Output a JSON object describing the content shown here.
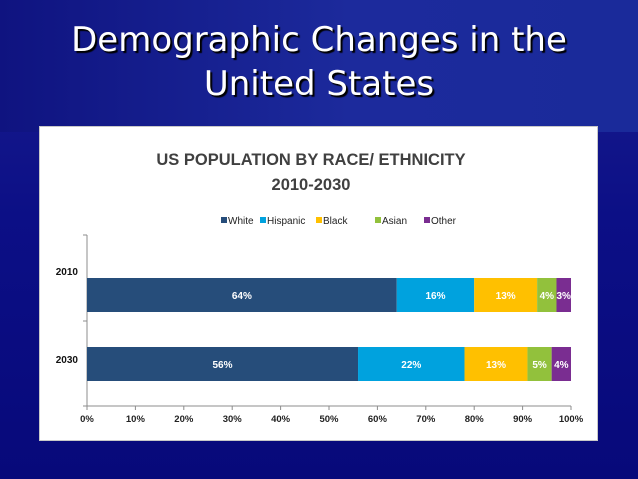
{
  "slide": {
    "title_line1": "Demographic Changes in the",
    "title_line2": "United States"
  },
  "colors": {
    "White": "#264d7a",
    "Hispanic": "#00a2de",
    "Black": "#ffc000",
    "Asian": "#92c13c",
    "Other": "#7a2d91"
  },
  "chart_data": {
    "type": "bar",
    "orientation": "horizontal",
    "stacked": true,
    "title_line1": "US POPULATION BY RACE/ ETHNICITY",
    "title_line2": "2010-2030",
    "categories": [
      "2010",
      "2030"
    ],
    "series": [
      {
        "name": "White",
        "values": [
          64,
          56
        ],
        "labels": [
          "64%",
          "56%"
        ]
      },
      {
        "name": "Hispanic",
        "values": [
          16,
          22
        ],
        "labels": [
          "16%",
          "22%"
        ]
      },
      {
        "name": "Black",
        "values": [
          13,
          13
        ],
        "labels": [
          "13%",
          "13%"
        ]
      },
      {
        "name": "Asian",
        "values": [
          4,
          5
        ],
        "labels": [
          "4%",
          "5%"
        ]
      },
      {
        "name": "Other",
        "values": [
          3,
          4
        ],
        "labels": [
          "3%",
          "4%"
        ]
      }
    ],
    "x_ticks": [
      "0%",
      "10%",
      "20%",
      "30%",
      "40%",
      "50%",
      "60%",
      "70%",
      "80%",
      "90%",
      "100%"
    ],
    "xlim": [
      0,
      100
    ],
    "legend_position": "top"
  }
}
